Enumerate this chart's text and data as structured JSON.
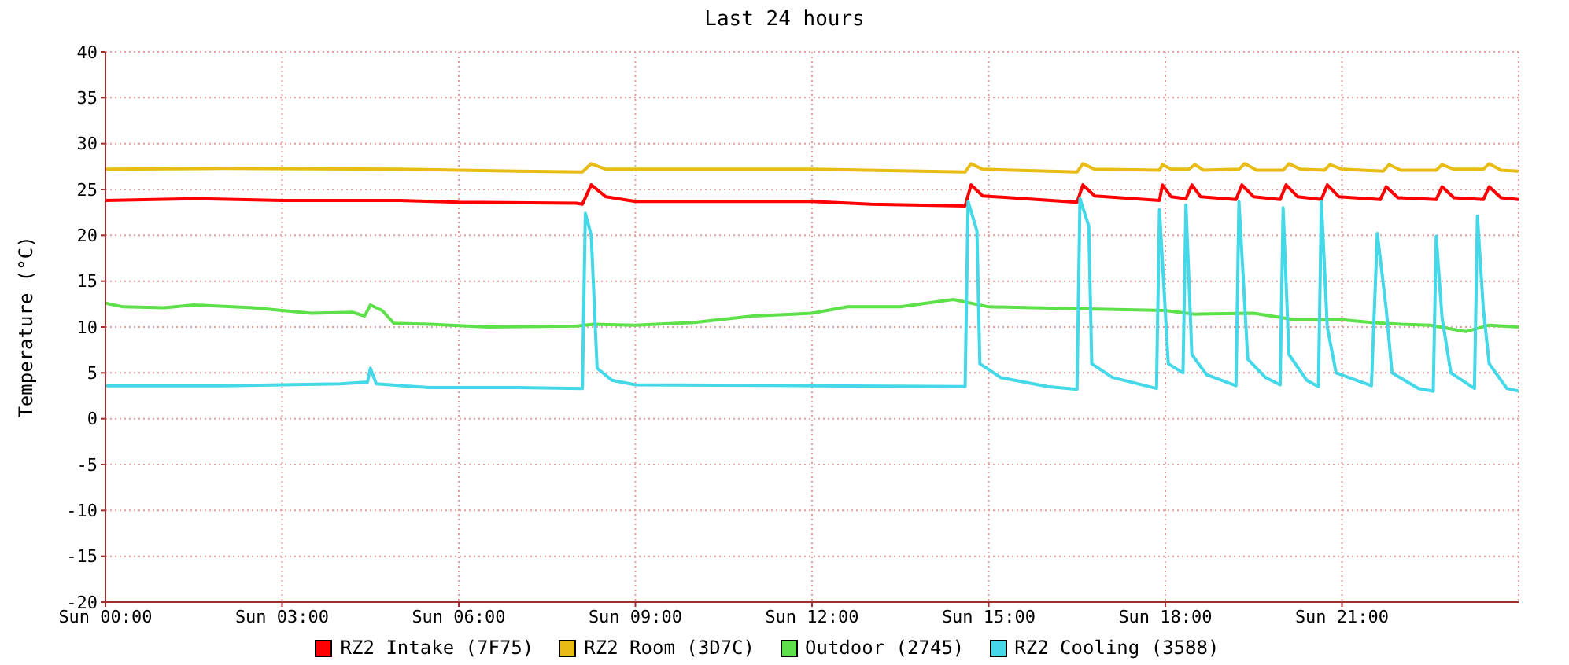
{
  "chart_data": {
    "type": "line",
    "title": "Last 24 hours",
    "ylabel": "Temperature (°C)",
    "xlim": [
      "--01-07T00:00",
      "--01-08T00:00"
    ],
    "xticks": [
      {
        "value": "--01-07T00:00",
        "label": "Sun 00:00"
      },
      {
        "value": "--01-07T03:00",
        "label": "Sun 03:00"
      },
      {
        "value": "--01-07T06:00",
        "label": "Sun 06:00"
      },
      {
        "value": "--01-07T09:00",
        "label": "Sun 09:00"
      },
      {
        "value": "--01-07T12:00",
        "label": "Sun 12:00"
      },
      {
        "value": "--01-07T15:00",
        "label": "Sun 15:00"
      },
      {
        "value": "--01-07T18:00",
        "label": "Sun 18:00"
      },
      {
        "value": "--01-07T21:00",
        "label": "Sun 21:00"
      }
    ],
    "ylim": [
      -20,
      40
    ],
    "yticks": [
      -20,
      -15,
      -10,
      -5,
      0,
      5,
      10,
      15,
      20,
      25,
      30,
      35,
      40
    ],
    "grid": true,
    "legend": "bottom",
    "series": [
      {
        "name": "RZ2 Intake (7F75)",
        "color": "#ff0000",
        "x": [
          "--01-07T00:00",
          "--01-07T01:30",
          "--01-07T03:00",
          "--01-07T05:00",
          "--01-07T06:00",
          "--01-07T08:00",
          "--01-07T08:06",
          "--01-07T08:15",
          "--01-07T08:30",
          "--01-07T09:00",
          "--01-07T12:00",
          "--01-07T13:00",
          "--01-07T14:36",
          "--01-07T14:42",
          "--01-07T14:54",
          "--01-07T16:30",
          "--01-07T16:36",
          "--01-07T16:48",
          "--01-07T17:54",
          "--01-07T17:57",
          "--01-07T18:06",
          "--01-07T18:21",
          "--01-07T18:27",
          "--01-07T18:36",
          "--01-07T19:12",
          "--01-07T19:18",
          "--01-07T19:30",
          "--01-07T19:57",
          "--01-07T20:03",
          "--01-07T20:15",
          "--01-07T20:39",
          "--01-07T20:45",
          "--01-07T20:57",
          "--01-07T21:39",
          "--01-07T21:45",
          "--01-07T21:57",
          "--01-07T22:36",
          "--01-07T22:42",
          "--01-07T22:54",
          "--01-07T23:24",
          "--01-07T23:30",
          "--01-07T23:42",
          "--01-08T00:00"
        ],
        "values": [
          23.8,
          24,
          23.8,
          23.8,
          23.6,
          23.5,
          23.4,
          25.5,
          24.2,
          23.7,
          23.7,
          23.4,
          23.2,
          25.5,
          24.3,
          23.6,
          25.5,
          24.3,
          23.8,
          25.5,
          24.2,
          24,
          25.5,
          24.2,
          23.9,
          25.5,
          24.2,
          23.9,
          25.5,
          24.2,
          23.9,
          25.5,
          24.2,
          23.9,
          25.3,
          24.1,
          23.9,
          25.3,
          24.1,
          23.9,
          25.3,
          24.1,
          23.9
        ]
      },
      {
        "name": "RZ2 Room (3D7C)",
        "color": "#e8bc14",
        "x": [
          "--01-07T00:00",
          "--01-07T02:00",
          "--01-07T05:00",
          "--01-07T07:00",
          "--01-07T08:06",
          "--01-07T08:15",
          "--01-07T08:30",
          "--01-07T12:00",
          "--01-07T14:36",
          "--01-07T14:42",
          "--01-07T14:54",
          "--01-07T16:30",
          "--01-07T16:36",
          "--01-07T16:48",
          "--01-07T17:54",
          "--01-07T17:57",
          "--01-07T18:06",
          "--01-07T18:24",
          "--01-07T18:30",
          "--01-07T18:39",
          "--01-07T19:15",
          "--01-07T19:21",
          "--01-07T19:33",
          "--01-07T20:00",
          "--01-07T20:06",
          "--01-07T20:18",
          "--01-07T20:42",
          "--01-07T20:48",
          "--01-07T21:00",
          "--01-07T21:42",
          "--01-07T21:48",
          "--01-07T22:00",
          "--01-07T22:36",
          "--01-07T22:42",
          "--01-07T22:54",
          "--01-07T23:24",
          "--01-07T23:30",
          "--01-07T23:42",
          "--01-08T00:00"
        ],
        "values": [
          27.2,
          27.3,
          27.2,
          27,
          26.9,
          27.8,
          27.2,
          27.2,
          26.9,
          27.8,
          27.2,
          26.9,
          27.8,
          27.2,
          27.1,
          27.7,
          27.2,
          27.2,
          27.7,
          27.1,
          27.2,
          27.8,
          27.1,
          27.1,
          27.8,
          27.2,
          27.1,
          27.7,
          27.2,
          27,
          27.7,
          27.1,
          27.1,
          27.7,
          27.2,
          27.2,
          27.8,
          27.1,
          27
        ]
      },
      {
        "name": "Outdoor (2745)",
        "color": "#5ee04a",
        "x": [
          "--01-07T00:00",
          "--01-07T00:18",
          "--01-07T01:00",
          "--01-07T01:30",
          "--01-07T02:30",
          "--01-07T03:30",
          "--01-07T04:12",
          "--01-07T04:24",
          "--01-07T04:30",
          "--01-07T04:42",
          "--01-07T04:54",
          "--01-07T05:30",
          "--01-07T06:30",
          "--01-07T08:00",
          "--01-07T08:18",
          "--01-07T09:00",
          "--01-07T10:00",
          "--01-07T11:00",
          "--01-07T12:00",
          "--01-07T12:36",
          "--01-07T13:30",
          "--01-07T14:24",
          "--01-07T15:00",
          "--01-07T16:30",
          "--01-07T18:00",
          "--01-07T18:30",
          "--01-07T19:30",
          "--01-07T20:12",
          "--01-07T21:00",
          "--01-07T21:30",
          "--01-07T22:00",
          "--01-07T22:30",
          "--01-07T23:06",
          "--01-07T23:30",
          "--01-08T00:00"
        ],
        "values": [
          12.6,
          12.2,
          12.1,
          12.4,
          12.1,
          11.5,
          11.6,
          11.2,
          12.4,
          11.8,
          10.4,
          10.3,
          10,
          10.1,
          10.3,
          10.2,
          10.5,
          11.2,
          11.5,
          12.2,
          12.2,
          13,
          12.2,
          12,
          11.8,
          11.4,
          11.5,
          10.8,
          10.8,
          10.5,
          10.3,
          10.2,
          9.5,
          10.2,
          10
        ]
      },
      {
        "name": "RZ2 Cooling (3588)",
        "color": "#44d8e8",
        "x": [
          "--01-07T00:00",
          "--01-07T02:00",
          "--01-07T04:00",
          "--01-07T04:27",
          "--01-07T04:30",
          "--01-07T04:36",
          "--01-07T05:30",
          "--01-07T07:00",
          "--01-07T08:06",
          "--01-07T08:09",
          "--01-07T08:15",
          "--01-07T08:21",
          "--01-07T08:36",
          "--01-07T09:00",
          "--01-07T12:00",
          "--01-07T14:36",
          "--01-07T14:39",
          "--01-07T14:48",
          "--01-07T14:51",
          "--01-07T15:12",
          "--01-07T16:00",
          "--01-07T16:30",
          "--01-07T16:33",
          "--01-07T16:42",
          "--01-07T16:45",
          "--01-07T17:06",
          "--01-07T17:51",
          "--01-07T17:54",
          "--01-07T18:03",
          "--01-07T18:18",
          "--01-07T18:21",
          "--01-07T18:27",
          "--01-07T18:42",
          "--01-07T19:12",
          "--01-07T19:15",
          "--01-07T19:24",
          "--01-07T19:42",
          "--01-07T19:57",
          "--01-07T20:00",
          "--01-07T20:06",
          "--01-07T20:24",
          "--01-07T20:36",
          "--01-07T20:39",
          "--01-07T20:45",
          "--01-07T20:54",
          "--01-07T21:30",
          "--01-07T21:36",
          "--01-07T21:45",
          "--01-07T21:51",
          "--01-07T22:18",
          "--01-07T22:33",
          "--01-07T22:36",
          "--01-07T22:42",
          "--01-07T22:51",
          "--01-07T23:15",
          "--01-07T23:18",
          "--01-07T23:24",
          "--01-07T23:30",
          "--01-07T23:48",
          "--01-08T00:00"
        ],
        "values": [
          3.6,
          3.6,
          3.8,
          4,
          5.5,
          3.8,
          3.4,
          3.4,
          3.3,
          22.4,
          20,
          5.5,
          4.2,
          3.7,
          3.6,
          3.5,
          23.7,
          20.5,
          6,
          4.5,
          3.5,
          3.2,
          24,
          21,
          6,
          4.5,
          3.3,
          22.8,
          6,
          5,
          23.3,
          7,
          4.8,
          3.6,
          23.7,
          6.5,
          4.5,
          3.7,
          23,
          7,
          4.2,
          3.5,
          23.7,
          10,
          5,
          3.6,
          20.2,
          12,
          5,
          3.3,
          3,
          19.9,
          11,
          5,
          3.3,
          22.1,
          12,
          6,
          3.3,
          3
        ]
      }
    ]
  }
}
